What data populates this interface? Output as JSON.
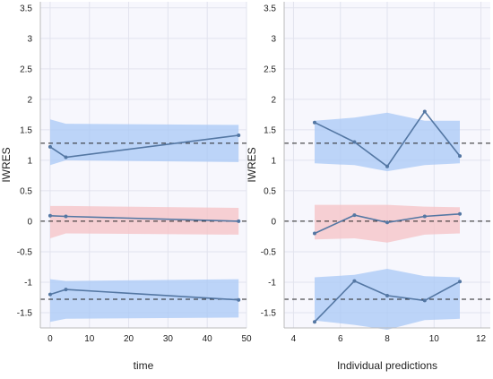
{
  "chart_data": [
    {
      "type": "line",
      "xlabel": "time",
      "ylabel": "IWRES",
      "xlim": [
        -2.5,
        50
      ],
      "ylim": [
        -1.75,
        3.6
      ],
      "xticks": [
        0,
        10,
        20,
        30,
        40,
        50
      ],
      "yticks": [
        -1.5,
        -1,
        -0.5,
        0,
        0.5,
        1,
        1.5,
        2,
        2.5,
        3,
        3.5
      ],
      "ytick_labels": [
        "-1.5",
        "-1",
        "-0.5",
        "0",
        "0.5",
        "1",
        "1.5",
        "2",
        "2.5",
        "3",
        "3.5"
      ],
      "grid": true,
      "reference_lines": [
        1.28,
        0,
        -1.28
      ],
      "bands": [
        {
          "color": "#a8c8f5",
          "x": [
            0,
            4,
            48
          ],
          "lower": [
            0.92,
            1.0,
            0.97
          ],
          "upper": [
            1.67,
            1.6,
            1.58
          ]
        },
        {
          "color": "#f5c1c4",
          "x": [
            0,
            4,
            48
          ],
          "lower": [
            -0.28,
            -0.2,
            -0.22
          ],
          "upper": [
            0.25,
            0.25,
            0.22
          ]
        },
        {
          "color": "#a8c8f5",
          "x": [
            0,
            4,
            48
          ],
          "lower": [
            -1.65,
            -1.6,
            -1.58
          ],
          "upper": [
            -0.95,
            -0.98,
            -0.95
          ]
        }
      ],
      "series": [
        {
          "x": [
            0,
            4,
            48
          ],
          "values": [
            1.22,
            1.05,
            1.41
          ]
        },
        {
          "x": [
            0,
            4,
            48
          ],
          "values": [
            0.09,
            0.08,
            0.0
          ]
        },
        {
          "x": [
            0,
            4,
            48
          ],
          "values": [
            -1.2,
            -1.12,
            -1.29
          ]
        }
      ]
    },
    {
      "type": "line",
      "xlabel": "Individual predictions",
      "ylabel": "IWRES",
      "xlim": [
        3.6,
        12.4
      ],
      "ylim": [
        -1.75,
        3.6
      ],
      "xticks": [
        4,
        6,
        8,
        10,
        12
      ],
      "yticks": [
        -1.5,
        -1,
        -0.5,
        0,
        0.5,
        1,
        1.5,
        2,
        2.5,
        3,
        3.5
      ],
      "ytick_labels": [
        "-1.5",
        "-1",
        "-0.5",
        "0",
        "0.5",
        "1",
        "1.5",
        "2",
        "2.5",
        "3",
        "3.5"
      ],
      "grid": true,
      "reference_lines": [
        1.28,
        0,
        -1.28
      ],
      "bands": [
        {
          "color": "#a8c8f5",
          "x": [
            4.9,
            6.6,
            8.0,
            9.6,
            11.1
          ],
          "lower": [
            0.95,
            0.92,
            0.82,
            0.92,
            0.95
          ],
          "upper": [
            1.65,
            1.7,
            1.78,
            1.65,
            1.65
          ]
        },
        {
          "color": "#f5c1c4",
          "x": [
            4.9,
            6.6,
            8.0,
            9.6,
            11.1
          ],
          "lower": [
            -0.3,
            -0.28,
            -0.35,
            -0.22,
            -0.2
          ],
          "upper": [
            0.27,
            0.27,
            0.27,
            0.24,
            0.23
          ]
        },
        {
          "color": "#a8c8f5",
          "x": [
            4.9,
            6.6,
            8.0,
            9.6,
            11.1
          ],
          "lower": [
            -1.63,
            -1.7,
            -1.78,
            -1.62,
            -1.6
          ],
          "upper": [
            -0.92,
            -0.88,
            -0.78,
            -0.9,
            -0.92
          ]
        }
      ],
      "series": [
        {
          "x": [
            4.9,
            6.6,
            8.0,
            9.6,
            11.1
          ],
          "values": [
            1.62,
            1.3,
            0.9,
            1.8,
            1.07
          ]
        },
        {
          "x": [
            4.9,
            6.6,
            8.0,
            9.6,
            11.1
          ],
          "values": [
            -0.2,
            0.1,
            -0.02,
            0.08,
            0.12
          ]
        },
        {
          "x": [
            4.9,
            6.6,
            8.0,
            9.6,
            11.1
          ],
          "values": [
            -1.65,
            -0.98,
            -1.22,
            -1.3,
            -0.99
          ]
        }
      ]
    }
  ],
  "colors": {
    "plot_background": "#f7f7fd",
    "grid": "#e2e3ee",
    "line": "#5477a3",
    "reference": "#222222",
    "text": "#222222"
  }
}
